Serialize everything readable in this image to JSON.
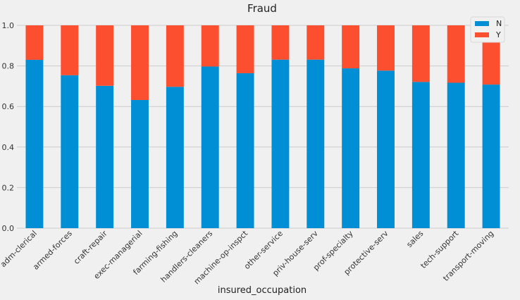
{
  "chart_data": {
    "type": "bar",
    "stacked": true,
    "title": "Fraud",
    "xlabel": "insured_occupation",
    "ylabel": "",
    "ylim": [
      0,
      1.0
    ],
    "yticks": [
      "0.0",
      "0.2",
      "0.4",
      "0.6",
      "0.8",
      "1.0"
    ],
    "grid": true,
    "legend_position": "top-right",
    "categories": [
      "adm-clerical",
      "armed-forces",
      "craft-repair",
      "exec-managerial",
      "farming-fishing",
      "handlers-cleaners",
      "machine-op-inspct",
      "other-service",
      "priv-house-serv",
      "prof-specialty",
      "protective-serv",
      "sales",
      "tech-support",
      "transport-moving"
    ],
    "series": [
      {
        "name": "N",
        "color": "#008fd5",
        "values": [
          0.83,
          0.754,
          0.702,
          0.632,
          0.697,
          0.797,
          0.764,
          0.831,
          0.831,
          0.788,
          0.777,
          0.721,
          0.717,
          0.708
        ]
      },
      {
        "name": "Y",
        "color": "#fc4f30",
        "values": [
          0.17,
          0.246,
          0.298,
          0.368,
          0.303,
          0.203,
          0.236,
          0.169,
          0.169,
          0.212,
          0.223,
          0.279,
          0.283,
          0.292
        ]
      }
    ]
  }
}
